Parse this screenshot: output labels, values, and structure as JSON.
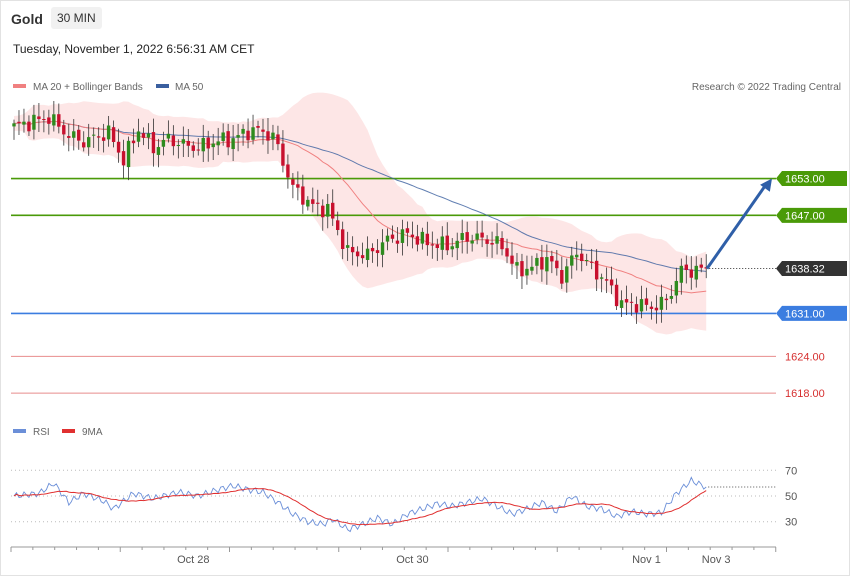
{
  "header": {
    "instrument": "Gold",
    "timeframe": "30 MIN",
    "timestamp": "Tuesday, November 1, 2022 6:56:31 AM CET"
  },
  "colors": {
    "ma20": "#f08080",
    "ma50": "#3a5f9f",
    "band_fill": "#fde2e2",
    "bull": "#2e8b1e",
    "bear": "#c8102e",
    "resistance": "#4a9a08",
    "pivot": "#3b7de0",
    "support": "#d63030",
    "arrow": "#2f5fa8",
    "rsi": "#6b8fd8",
    "rsi_ma": "#e03030"
  },
  "chart_data": [
    {
      "type": "candlestick",
      "legend": [
        {
          "label": "MA 20 + Bollinger Bands",
          "color": "#f08080"
        },
        {
          "label": "MA 50",
          "color": "#3a5f9f"
        }
      ],
      "legend_placement": "top-left",
      "credit": "Research © 2022 Trading Central",
      "ylim": [
        1611,
        1665
      ],
      "current_price": 1638.32,
      "current_price_label": "1638.32",
      "levels": [
        {
          "value": 1653.0,
          "label": "1653.00",
          "kind": "resistance",
          "tag": true
        },
        {
          "value": 1647.0,
          "label": "1647.00",
          "kind": "resistance",
          "tag": true
        },
        {
          "value": 1631.0,
          "label": "1631.00",
          "kind": "pivot",
          "tag": true
        },
        {
          "value": 1624.0,
          "label": "1624.00",
          "kind": "support",
          "tag": false
        },
        {
          "value": 1618.0,
          "label": "1618.00",
          "kind": "support",
          "tag": false
        }
      ],
      "forecast": {
        "from": 1638.3,
        "to": 1653.0
      },
      "x_labels": [
        "Oct 28",
        "Oct 30",
        "Nov 1",
        "Nov 3"
      ],
      "anchors": [
        {
          "i": 0,
          "v": 1661.5
        },
        {
          "i": 7,
          "v": 1663.0
        },
        {
          "i": 11,
          "v": 1660.0
        },
        {
          "i": 14,
          "v": 1659.0
        },
        {
          "i": 19,
          "v": 1660.5
        },
        {
          "i": 22,
          "v": 1656.0
        },
        {
          "i": 25,
          "v": 1661.0
        },
        {
          "i": 28,
          "v": 1658.0
        },
        {
          "i": 31,
          "v": 1659.5
        },
        {
          "i": 34,
          "v": 1658.5
        },
        {
          "i": 37,
          "v": 1658.0
        },
        {
          "i": 40,
          "v": 1659.0
        },
        {
          "i": 44,
          "v": 1659.5
        },
        {
          "i": 48,
          "v": 1661.0
        },
        {
          "i": 52,
          "v": 1660.0
        },
        {
          "i": 56,
          "v": 1651.5
        },
        {
          "i": 60,
          "v": 1648.5
        },
        {
          "i": 63,
          "v": 1648.0
        },
        {
          "i": 67,
          "v": 1641.0
        },
        {
          "i": 71,
          "v": 1640.5
        },
        {
          "i": 75,
          "v": 1643.0
        },
        {
          "i": 79,
          "v": 1644.0
        },
        {
          "i": 83,
          "v": 1642.5
        },
        {
          "i": 87,
          "v": 1642.0
        },
        {
          "i": 91,
          "v": 1643.5
        },
        {
          "i": 95,
          "v": 1643.0
        },
        {
          "i": 98,
          "v": 1642.0
        },
        {
          "i": 101,
          "v": 1638.0
        },
        {
          "i": 104,
          "v": 1638.5
        },
        {
          "i": 107,
          "v": 1640.0
        },
        {
          "i": 110,
          "v": 1637.0
        },
        {
          "i": 113,
          "v": 1641.0
        },
        {
          "i": 116,
          "v": 1638.5
        },
        {
          "i": 119,
          "v": 1636.0
        },
        {
          "i": 122,
          "v": 1632.5
        },
        {
          "i": 125,
          "v": 1632.5
        },
        {
          "i": 128,
          "v": 1632.0
        },
        {
          "i": 131,
          "v": 1633.0
        },
        {
          "i": 134,
          "v": 1638.0
        },
        {
          "i": 137,
          "v": 1638.0
        },
        {
          "i": 139,
          "v": 1638.3
        }
      ],
      "candle_count": 140
    },
    {
      "type": "line",
      "legend": [
        {
          "label": "RSI",
          "color": "#6b8fd8"
        },
        {
          "label": "9MA",
          "color": "#e03030"
        }
      ],
      "ylim": [
        22,
        78
      ],
      "y_ticks": [
        70,
        50,
        30
      ],
      "rsi_anchors": [
        {
          "i": 0,
          "v": 50
        },
        {
          "i": 5,
          "v": 52
        },
        {
          "i": 8,
          "v": 60
        },
        {
          "i": 11,
          "v": 45
        },
        {
          "i": 14,
          "v": 52
        },
        {
          "i": 18,
          "v": 46
        },
        {
          "i": 20,
          "v": 40
        },
        {
          "i": 24,
          "v": 52
        },
        {
          "i": 28,
          "v": 48
        },
        {
          "i": 33,
          "v": 53
        },
        {
          "i": 37,
          "v": 50
        },
        {
          "i": 41,
          "v": 55
        },
        {
          "i": 44,
          "v": 58
        },
        {
          "i": 47,
          "v": 55
        },
        {
          "i": 50,
          "v": 53
        },
        {
          "i": 53,
          "v": 45
        },
        {
          "i": 56,
          "v": 36
        },
        {
          "i": 59,
          "v": 30
        },
        {
          "i": 62,
          "v": 28
        },
        {
          "i": 64,
          "v": 32
        },
        {
          "i": 67,
          "v": 24
        },
        {
          "i": 70,
          "v": 28
        },
        {
          "i": 73,
          "v": 33
        },
        {
          "i": 76,
          "v": 28
        },
        {
          "i": 79,
          "v": 36
        },
        {
          "i": 82,
          "v": 40
        },
        {
          "i": 85,
          "v": 44
        },
        {
          "i": 88,
          "v": 42
        },
        {
          "i": 91,
          "v": 45
        },
        {
          "i": 94,
          "v": 48
        },
        {
          "i": 97,
          "v": 42
        },
        {
          "i": 100,
          "v": 36
        },
        {
          "i": 103,
          "v": 40
        },
        {
          "i": 106,
          "v": 45
        },
        {
          "i": 109,
          "v": 38
        },
        {
          "i": 112,
          "v": 50
        },
        {
          "i": 115,
          "v": 42
        },
        {
          "i": 118,
          "v": 40
        },
        {
          "i": 121,
          "v": 34
        },
        {
          "i": 124,
          "v": 38
        },
        {
          "i": 127,
          "v": 36
        },
        {
          "i": 130,
          "v": 37
        },
        {
          "i": 133,
          "v": 52
        },
        {
          "i": 136,
          "v": 62
        },
        {
          "i": 139,
          "v": 57
        }
      ]
    }
  ]
}
